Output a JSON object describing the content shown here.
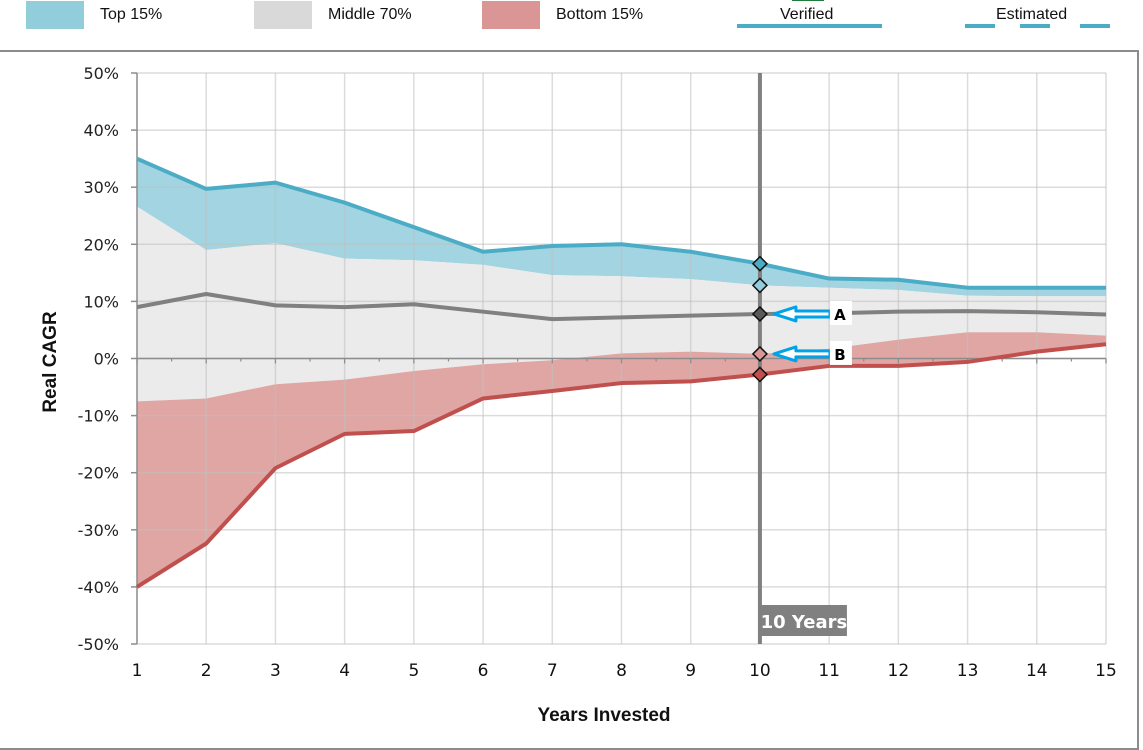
{
  "legend": {
    "top": {
      "label": "Top 15%",
      "color": "#92cddc"
    },
    "middle": {
      "label": "Middle 70%",
      "color": "#d9d9d9"
    },
    "bottom": {
      "label": "Bottom 15%",
      "color": "#da9694"
    },
    "verified": {
      "label": "Verified",
      "color": "#4bacc6"
    },
    "estimated": {
      "label": "Estimated",
      "color": "#4bacc6"
    }
  },
  "chart_data": {
    "type": "area",
    "title": "",
    "xlabel": "Years Invested",
    "ylabel": "Real CAGR",
    "x": [
      1,
      2,
      3,
      4,
      5,
      6,
      7,
      8,
      9,
      10,
      11,
      12,
      13,
      14,
      15
    ],
    "xlim": [
      1,
      15
    ],
    "ylim": [
      -50,
      50
    ],
    "yticks": [
      50,
      40,
      30,
      20,
      10,
      0,
      -10,
      -20,
      -30,
      -40,
      -50
    ],
    "ytick_labels": [
      "50%",
      "40%",
      "30%",
      "20%",
      "10%",
      "0%",
      "-10%",
      "-20%",
      "-30%",
      "-40%",
      "-50%"
    ],
    "xtick_labels": [
      "1",
      "2",
      "3",
      "4",
      "5",
      "6",
      "7",
      "8",
      "9",
      "10",
      "11",
      "12",
      "13",
      "14",
      "15"
    ],
    "grid": true,
    "legend_position": "top",
    "series": [
      {
        "name": "Top line (max)",
        "role": "line",
        "color": "#4bacc6",
        "values": [
          35,
          29.7,
          30.8,
          27.3,
          23,
          18.7,
          19.7,
          20,
          18.7,
          16.6,
          14,
          13.8,
          12.4,
          12.4,
          12.4
        ]
      },
      {
        "name": "Top 15% lower bound",
        "role": "band-edge",
        "values": [
          26.6,
          19,
          20.2,
          17.5,
          17.2,
          16.4,
          14.6,
          14.4,
          13.9,
          12.8,
          12.4,
          12,
          11,
          10.9,
          10.9
        ]
      },
      {
        "name": "Median",
        "role": "line",
        "color": "#808080",
        "values": [
          9,
          11.3,
          9.3,
          9,
          9.5,
          8.2,
          6.9,
          7.2,
          7.5,
          7.8,
          7.9,
          8.2,
          8.3,
          8.1,
          7.7
        ]
      },
      {
        "name": "Bottom 15% upper bound",
        "role": "band-edge",
        "values": [
          -7.5,
          -7,
          -4.5,
          -3.7,
          -2.2,
          -1,
          -0.3,
          0.9,
          1.2,
          0.8,
          1.7,
          3.3,
          4.6,
          4.6,
          4
        ]
      },
      {
        "name": "Bottom line (min)",
        "role": "line",
        "color": "#c0504d",
        "values": [
          -40,
          -32.4,
          -19.2,
          -13.2,
          -12.7,
          -7,
          -5.7,
          -4.3,
          -4,
          -2.8,
          -1.3,
          -1.3,
          -0.6,
          1.2,
          2.5
        ]
      }
    ],
    "bands": [
      {
        "name": "Top 15%",
        "color": "#92cddc",
        "from": "Top 15% lower bound",
        "to": "Top line (max)"
      },
      {
        "name": "Middle 70%",
        "color": "#ebebeb",
        "from": "Bottom 15% upper bound",
        "to": "Top 15% lower bound"
      },
      {
        "name": "Bottom 15%",
        "color": "#da9694",
        "from": "Bottom line (min)",
        "to": "Bottom 15% upper bound"
      }
    ],
    "marker": {
      "x": 10,
      "label": "10 Years",
      "points": [
        {
          "value": 16.6,
          "color": "#4bacc6"
        },
        {
          "value": 12.8,
          "color": "#92cddc"
        },
        {
          "value": 7.8,
          "color": "#595959"
        },
        {
          "value": 0.8,
          "color": "#da9694"
        },
        {
          "value": -2.8,
          "color": "#c0504d"
        }
      ]
    },
    "annotations": [
      {
        "label": "A",
        "points_to_value": 7.8,
        "arrow_color": "#00a2e8"
      },
      {
        "label": "B",
        "points_to_value": 0.8,
        "arrow_color": "#00a2e8"
      }
    ]
  }
}
